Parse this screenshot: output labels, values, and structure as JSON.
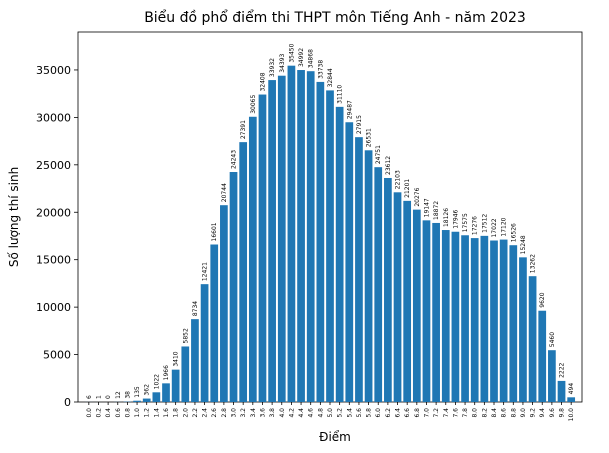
{
  "chart_data": {
    "type": "bar",
    "title": "Biểu đồ phổ điểm thi THPT môn Tiếng Anh - năm 2023",
    "x_label": "Điểm",
    "y_label": "Số lượng thí sinh",
    "color": "#1f77b4",
    "categories": [
      "0.0",
      "0.2",
      "0.4",
      "0.6",
      "0.8",
      "1.0",
      "1.2",
      "1.4",
      "1.6",
      "1.8",
      "2.0",
      "2.2",
      "2.4",
      "2.6",
      "2.8",
      "3.0",
      "3.2",
      "3.4",
      "3.6",
      "3.8",
      "4.0",
      "4.2",
      "4.4",
      "4.6",
      "4.8",
      "5.0",
      "5.2",
      "5.4",
      "5.6",
      "5.8",
      "6.0",
      "6.2",
      "6.4",
      "6.6",
      "6.8",
      "7.0",
      "7.2",
      "7.4",
      "7.6",
      "7.8",
      "8.0",
      "8.2",
      "8.4",
      "8.6",
      "8.8",
      "9.0",
      "9.2",
      "9.4",
      "9.6",
      "9.8",
      "10.0"
    ],
    "values": [
      6,
      1,
      0,
      12,
      38,
      135,
      362,
      1022,
      1966,
      3410,
      5852,
      8734,
      12421,
      16601,
      20744,
      24243,
      27391,
      30065,
      32408,
      33932,
      34393,
      35450,
      34992,
      34868,
      33738,
      32844,
      31110,
      29487,
      27915,
      26531,
      24751,
      23612,
      22103,
      21201,
      20276,
      19147,
      18872,
      18126,
      17946,
      17575,
      17276,
      17512,
      17022,
      17120,
      16526,
      15248,
      13262,
      9620,
      5460,
      2222,
      494
    ],
    "ylim": [
      0,
      39000
    ],
    "yticks": [
      0,
      5000,
      10000,
      15000,
      20000,
      25000,
      30000,
      35000
    ]
  }
}
